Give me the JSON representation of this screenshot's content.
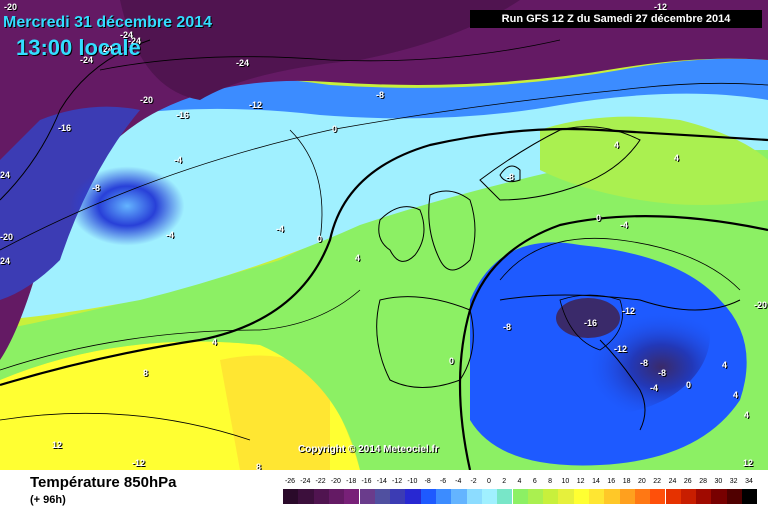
{
  "header": {
    "date_line": "Mercredi 31 décembre 2014",
    "time_line": "13:00 locale",
    "run_info": "Run GFS 12 Z du Samedi 27 décembre 2014"
  },
  "copyright": "Copyright © 2014 Meteociel.fr",
  "footer": {
    "title": "Température 850hPa",
    "subtitle": "(+ 96h)"
  },
  "scale": {
    "ticks": [
      "-26",
      "-24",
      "-22",
      "-20",
      "-18",
      "-16",
      "-14",
      "-12",
      "-10",
      "-8",
      "-6",
      "-4",
      "-2",
      "0",
      "2",
      "4",
      "6",
      "8",
      "10",
      "12",
      "14",
      "16",
      "18",
      "20",
      "22",
      "24",
      "26",
      "28",
      "30",
      "32",
      "34"
    ],
    "colors": [
      "#2a0a2a",
      "#3c0f3c",
      "#501450",
      "#641a64",
      "#782078",
      "#6a3c8c",
      "#5050a0",
      "#3c3cb4",
      "#2828d2",
      "#1e5aff",
      "#3c8cff",
      "#64b4ff",
      "#8cdcff",
      "#a0f0ff",
      "#78e6c8",
      "#8cf064",
      "#aaf050",
      "#c8f03c",
      "#e6f03c",
      "#ffff32",
      "#ffe632",
      "#ffc828",
      "#ffa01e",
      "#ff7814",
      "#ff500a",
      "#e63200",
      "#c81e00",
      "#a00a00",
      "#780000",
      "#500000",
      "#000000"
    ]
  },
  "isotherm_labels": [
    "-20",
    "-24",
    "-24",
    "-24",
    "-24",
    "-20",
    "-16",
    "-12",
    "-8",
    "-16",
    "-4",
    "-8",
    "-4",
    "-4",
    "0",
    "0",
    "4",
    "4",
    "4",
    "-12",
    "-12",
    "-16",
    "-8",
    "-8",
    "-12",
    "-8",
    "0",
    "-4",
    "8",
    "12",
    "-12",
    "8",
    "0",
    "4",
    "4",
    "12",
    "-20",
    "24",
    "24",
    "-20",
    "-24",
    "-8",
    "4",
    "0",
    "-4",
    "4"
  ],
  "colors": {
    "title_cyan": "#33ddff"
  }
}
